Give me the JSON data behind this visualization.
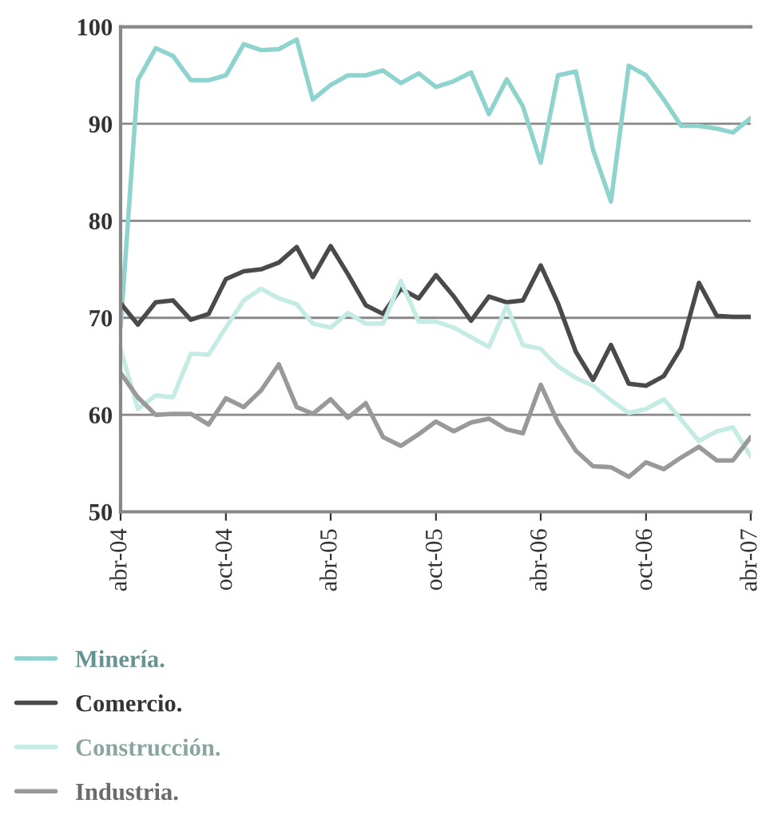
{
  "chart_data": {
    "type": "line",
    "x": [
      "2004-04",
      "2004-05",
      "2004-06",
      "2004-07",
      "2004-08",
      "2004-09",
      "2004-10",
      "2004-11",
      "2004-12",
      "2005-01",
      "2005-02",
      "2005-03",
      "2005-04",
      "2005-05",
      "2005-06",
      "2005-07",
      "2005-08",
      "2005-09",
      "2005-10",
      "2005-11",
      "2005-12",
      "2006-01",
      "2006-02",
      "2006-03",
      "2006-04",
      "2006-05",
      "2006-06",
      "2006-07",
      "2006-08",
      "2006-09",
      "2006-10",
      "2006-11",
      "2006-12",
      "2007-01",
      "2007-02",
      "2007-03",
      "2007-04"
    ],
    "series": [
      {
        "name": "Minería.",
        "color": "#8fd3cf",
        "values": [
          69,
          94.5,
          97.8,
          97,
          94.5,
          94.5,
          95,
          98.2,
          97.6,
          97.7,
          98.7,
          92.5,
          94,
          95,
          95,
          95.5,
          94.2,
          95.2,
          93.8,
          94.4,
          95.3,
          91,
          94.6,
          91.8,
          86,
          95,
          95.4,
          87.3,
          82,
          96,
          95,
          92.5,
          89.8,
          89.8,
          89.5,
          89.1,
          90.6
        ]
      },
      {
        "name": "Comercio.",
        "color": "#4a4a4a",
        "values": [
          71.5,
          69.3,
          71.6,
          71.8,
          69.8,
          70.4,
          74,
          74.8,
          75,
          75.7,
          77.3,
          74.2,
          77.4,
          74.5,
          71.3,
          70.4,
          73,
          72,
          74.4,
          72.2,
          69.7,
          72.2,
          71.6,
          71.8,
          75.4,
          71.5,
          66.5,
          63.6,
          67.2,
          63.2,
          63,
          64,
          66.9,
          73.6,
          70.2,
          70.1,
          70.1
        ]
      },
      {
        "name": "Construcción.",
        "color": "#c5ebe5",
        "values": [
          66.8,
          60.6,
          62,
          61.8,
          66.3,
          66.2,
          69,
          71.8,
          73,
          72,
          71.4,
          69.4,
          69,
          70.5,
          69.4,
          69.4,
          73.8,
          69.6,
          69.6,
          69,
          68,
          67,
          71.2,
          67.2,
          66.8,
          65,
          63.8,
          63,
          61.5,
          60.2,
          60.6,
          61.6,
          59.5,
          57.3,
          58.3,
          58.7,
          55.7
        ]
      },
      {
        "name": "Industria.",
        "color": "#999999",
        "values": [
          64.3,
          61.8,
          60,
          60.1,
          60.1,
          59,
          61.7,
          60.8,
          62.5,
          65.2,
          60.8,
          60.1,
          61.6,
          59.7,
          61.2,
          57.7,
          56.8,
          58,
          59.3,
          58.3,
          59.2,
          59.6,
          58.5,
          58.1,
          63.1,
          59.2,
          56.3,
          54.7,
          54.6,
          53.6,
          55.1,
          54.4,
          55.6,
          56.7,
          55.3,
          55.3,
          57.7
        ]
      }
    ],
    "xlim": [
      "2004-04",
      "2007-04"
    ],
    "xticks": [
      {
        "value": "2004-04",
        "label": "abr-04"
      },
      {
        "value": "2004-10",
        "label": "oct-04"
      },
      {
        "value": "2005-04",
        "label": "abr-05"
      },
      {
        "value": "2005-10",
        "label": "oct-05"
      },
      {
        "value": "2006-04",
        "label": "abr-06"
      },
      {
        "value": "2006-10",
        "label": "oct-06"
      },
      {
        "value": "2007-04",
        "label": "abr-07"
      }
    ],
    "ylim": [
      50,
      100
    ],
    "yticks": [
      50,
      60,
      70,
      80,
      90,
      100
    ],
    "grid": "y",
    "legend": "bottom",
    "marker": "none",
    "line_style": "solid"
  }
}
